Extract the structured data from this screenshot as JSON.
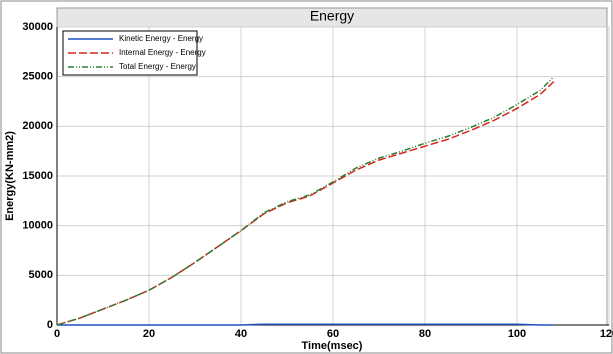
{
  "chart_data": {
    "type": "line",
    "title": "Energy",
    "x_label": "Time(msec)",
    "y_label": "Energy(KN-mm2)",
    "x": [
      0,
      5,
      10,
      15,
      20,
      25,
      30,
      35,
      40,
      45,
      50,
      55,
      60,
      65,
      70,
      75,
      80,
      85,
      90,
      95,
      100,
      105,
      108
    ],
    "series": [
      {
        "name": "Kinetic Energy - Energy",
        "color": "#1f4fbf",
        "dash": "solid",
        "values": [
          0,
          0,
          0,
          0,
          0,
          0,
          0,
          0,
          0,
          80,
          80,
          80,
          80,
          80,
          80,
          80,
          80,
          80,
          80,
          80,
          80,
          0,
          0
        ]
      },
      {
        "name": "Internal Energy - Energy",
        "color": "#d9261c",
        "dash": "dash",
        "values": [
          0,
          700,
          1600,
          2500,
          3500,
          4800,
          6300,
          7900,
          9500,
          11200,
          12300,
          13000,
          14300,
          15600,
          16600,
          17300,
          18000,
          18700,
          19600,
          20600,
          21800,
          23200,
          24500
        ]
      },
      {
        "name": "Total Energy - Energy",
        "color": "#2e7d32",
        "dash": "dashdot",
        "values": [
          0,
          700,
          1600,
          2500,
          3500,
          4800,
          6300,
          7900,
          9500,
          11300,
          12400,
          13100,
          14400,
          15800,
          16800,
          17500,
          18300,
          19000,
          19900,
          20900,
          22200,
          23600,
          25000
        ]
      }
    ],
    "xlim": [
      0,
      120
    ],
    "xticks": [
      0,
      20,
      40,
      60,
      80,
      100,
      120
    ],
    "ylim": [
      0,
      30000
    ],
    "yticks": [
      0,
      5000,
      10000,
      15000,
      20000,
      25000,
      30000
    ],
    "grid": true,
    "legend": "upper left"
  }
}
